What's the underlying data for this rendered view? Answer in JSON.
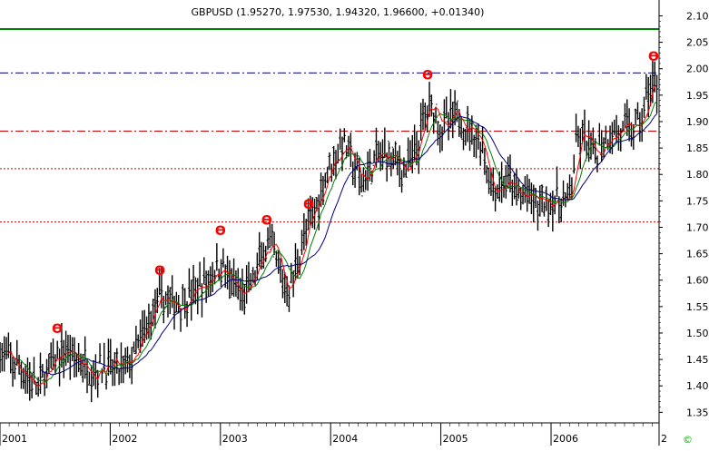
{
  "chart_data": {
    "type": "candlestick-ohlc",
    "title": "GBPUSD (1.95270, 1.97530, 1.94320, 1.96600, +0.01340)",
    "xlabel": "",
    "ylabel": "",
    "x_ticks": [
      "2001",
      "2002",
      "2003",
      "2004",
      "2005",
      "2006",
      "2"
    ],
    "y_ticks": [
      "1.35",
      "1.40",
      "1.45",
      "1.50",
      "1.55",
      "1.60",
      "1.65",
      "1.70",
      "1.75",
      "1.80",
      "1.85",
      "1.90",
      "1.95",
      "2.00",
      "2.05",
      "2.10"
    ],
    "ylim": [
      1.33,
      2.13
    ],
    "xlim": [
      2001.0,
      2006.98
    ],
    "grid": false,
    "colors": {
      "bars": "#000000",
      "ma_fast": "#ff0000",
      "ma_mid": "#008000",
      "ma_slow": "#000080",
      "marker": "#ff0000",
      "top_line": "#008000",
      "dashdot": "#000080",
      "dashdot_red": "#cc0000",
      "dotted_red": "#cc0000",
      "copyright": "#00aa00"
    },
    "horizontal_lines": [
      {
        "y": 2.075,
        "style": "solid",
        "color_key": "top_line"
      },
      {
        "y": 1.992,
        "style": "dashdot",
        "color_key": "dashdot"
      },
      {
        "y": 1.882,
        "style": "dashdot",
        "color_key": "dashdot_red"
      },
      {
        "y": 1.811,
        "style": "dotted",
        "color_key": "dotted_red"
      },
      {
        "y": 1.71,
        "style": "dotted",
        "color_key": "dotted_red"
      }
    ],
    "markers": [
      {
        "x": 2001.52,
        "y": 1.5,
        "label": "ϴ"
      },
      {
        "x": 2002.45,
        "y": 1.61,
        "label": "ϴ"
      },
      {
        "x": 2003.0,
        "y": 1.685,
        "label": "ϴ"
      },
      {
        "x": 2003.42,
        "y": 1.705,
        "label": "ϴ"
      },
      {
        "x": 2003.8,
        "y": 1.735,
        "label": "ϴ"
      },
      {
        "x": 2004.88,
        "y": 1.98,
        "label": "ϴ"
      },
      {
        "x": 2006.93,
        "y": 2.015,
        "label": "ϴ"
      }
    ],
    "anchors": [
      [
        2001.0,
        1.465
      ],
      [
        2001.08,
        1.445
      ],
      [
        2001.18,
        1.435
      ],
      [
        2001.28,
        1.41
      ],
      [
        2001.34,
        1.395
      ],
      [
        2001.42,
        1.425
      ],
      [
        2001.52,
        1.45
      ],
      [
        2001.6,
        1.47
      ],
      [
        2001.72,
        1.445
      ],
      [
        2001.85,
        1.43
      ],
      [
        2001.95,
        1.44
      ],
      [
        2002.05,
        1.425
      ],
      [
        2002.12,
        1.432
      ],
      [
        2002.2,
        1.45
      ],
      [
        2002.3,
        1.495
      ],
      [
        2002.4,
        1.545
      ],
      [
        2002.47,
        1.57
      ],
      [
        2002.55,
        1.555
      ],
      [
        2002.65,
        1.56
      ],
      [
        2002.75,
        1.575
      ],
      [
        2002.85,
        1.59
      ],
      [
        2002.95,
        1.62
      ],
      [
        2003.02,
        1.63
      ],
      [
        2003.1,
        1.59
      ],
      [
        2003.2,
        1.57
      ],
      [
        2003.3,
        1.6
      ],
      [
        2003.4,
        1.66
      ],
      [
        2003.47,
        1.66
      ],
      [
        2003.55,
        1.6
      ],
      [
        2003.62,
        1.58
      ],
      [
        2003.68,
        1.62
      ],
      [
        2003.75,
        1.68
      ],
      [
        2003.82,
        1.71
      ],
      [
        2003.9,
        1.76
      ],
      [
        2003.97,
        1.81
      ],
      [
        2004.05,
        1.84
      ],
      [
        2004.12,
        1.86
      ],
      [
        2004.2,
        1.82
      ],
      [
        2004.28,
        1.78
      ],
      [
        2004.35,
        1.81
      ],
      [
        2004.42,
        1.83
      ],
      [
        2004.5,
        1.84
      ],
      [
        2004.58,
        1.83
      ],
      [
        2004.65,
        1.81
      ],
      [
        2004.72,
        1.82
      ],
      [
        2004.8,
        1.86
      ],
      [
        2004.86,
        1.92
      ],
      [
        2004.92,
        1.93
      ],
      [
        2005.0,
        1.89
      ],
      [
        2005.08,
        1.9
      ],
      [
        2005.15,
        1.91
      ],
      [
        2005.22,
        1.89
      ],
      [
        2005.3,
        1.88
      ],
      [
        2005.38,
        1.85
      ],
      [
        2005.45,
        1.78
      ],
      [
        2005.52,
        1.77
      ],
      [
        2005.6,
        1.79
      ],
      [
        2005.7,
        1.76
      ],
      [
        2005.8,
        1.76
      ],
      [
        2005.88,
        1.74
      ],
      [
        2005.96,
        1.75
      ],
      [
        2006.05,
        1.75
      ],
      [
        2006.12,
        1.745
      ],
      [
        2006.18,
        1.76
      ],
      [
        2006.22,
        1.85
      ],
      [
        2006.3,
        1.87
      ],
      [
        2006.38,
        1.83
      ],
      [
        2006.45,
        1.86
      ],
      [
        2006.55,
        1.88
      ],
      [
        2006.65,
        1.88
      ],
      [
        2006.75,
        1.89
      ],
      [
        2006.82,
        1.9
      ],
      [
        2006.88,
        1.96
      ],
      [
        2006.95,
        1.966
      ]
    ],
    "copyright_symbol": "©"
  }
}
